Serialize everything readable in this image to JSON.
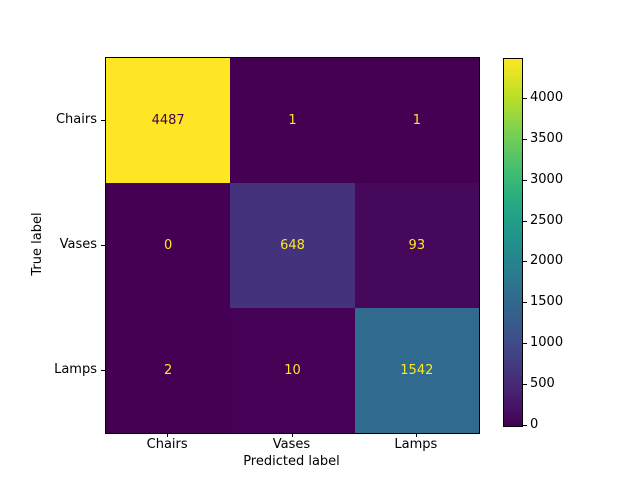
{
  "figure": {
    "background": "#ffffff",
    "axis_color": "#000000"
  },
  "chart_data": {
    "type": "heatmap",
    "title": "",
    "xlabel": "Predicted label",
    "ylabel": "True label",
    "x_categories": [
      "Chairs",
      "Vases",
      "Lamps"
    ],
    "y_categories": [
      "Chairs",
      "Vases",
      "Lamps"
    ],
    "matrix": [
      [
        4487,
        1,
        1
      ],
      [
        0,
        648,
        93
      ],
      [
        2,
        10,
        1542
      ]
    ],
    "vmin": 0,
    "vmax": 4487,
    "colormap": "viridis",
    "cell_colors": [
      [
        "#fde725",
        "#440154",
        "#440154"
      ],
      [
        "#440154",
        "#45327d",
        "#45085b"
      ],
      [
        "#440154",
        "#440155",
        "#306a8e"
      ]
    ],
    "cell_text_colors": [
      [
        "#440154",
        "#fde725",
        "#fde725"
      ],
      [
        "#fde725",
        "#fde725",
        "#fde725"
      ],
      [
        "#fde725",
        "#fde725",
        "#fde725"
      ]
    ],
    "colorbar": {
      "ticks": [
        0,
        500,
        1000,
        1500,
        2000,
        2500,
        3000,
        3500,
        4000
      ],
      "gradient_stops": [
        "#440154",
        "#482475",
        "#414487",
        "#355f8d",
        "#2a788e",
        "#21918c",
        "#22a884",
        "#44bf70",
        "#7ad151",
        "#bddf26",
        "#fde725"
      ]
    },
    "legend_position": "right-colorbar",
    "grid": false
  }
}
